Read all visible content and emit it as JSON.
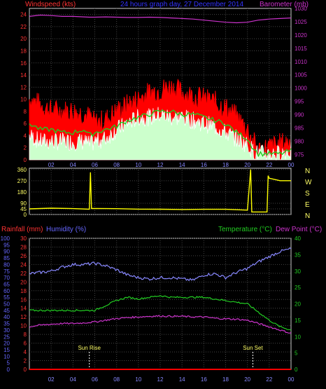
{
  "header": {
    "left_title": "Windspeed (kts)",
    "center_title": "24 hours graph day, 27 December 2014",
    "right_title": "Barometer (mb)"
  },
  "bottom_header": {
    "rainfall": "Rainfall (mm)",
    "humidity": "Humidity (%)",
    "temperature": "Temperature (°C)",
    "dewpoint": "Dew Point (°C)"
  },
  "colors": {
    "wind_gust": "#ff0000",
    "wind_avg": "#ffffff",
    "wind_avg_area": "#ccffcc",
    "wind_smooth": "#22cc22",
    "barometer": "#cc33cc",
    "direction": "#ffff00",
    "humidity": "#8888ff",
    "temperature": "#22cc22",
    "dewpoint": "#cc33cc",
    "rainfall": "#ff0000",
    "axis_left": "#ff3333",
    "axis_right": "#cc33cc",
    "axis_blue": "#6666ff",
    "axis_green": "#22cc22",
    "axis_yellow": "#ffff66",
    "grid": "#444444",
    "frame": "#cccccc"
  },
  "chart_data": [
    {
      "type": "line",
      "name": "wind-barometer",
      "x_ticks": [
        "02",
        "04",
        "06",
        "08",
        "10",
        "12",
        "14",
        "16",
        "18",
        "20",
        "22",
        "00"
      ],
      "y_left": {
        "label": "Windspeed (kts)",
        "ticks": [
          0,
          2,
          4,
          6,
          8,
          10,
          12,
          14,
          16,
          18,
          20,
          22,
          24
        ],
        "range": [
          0,
          25
        ]
      },
      "y_right": {
        "label": "Barometer (mb)",
        "ticks": [
          975,
          980,
          985,
          990,
          995,
          1000,
          1005,
          1010,
          1015,
          1020,
          1025,
          1030
        ],
        "range": [
          973,
          1030
        ]
      },
      "x_hours": [
        0,
        1,
        2,
        3,
        4,
        5,
        5.5,
        6,
        7,
        8,
        9,
        10,
        11,
        12,
        13,
        14,
        15,
        16,
        17,
        18,
        19,
        20,
        20.5,
        21,
        22,
        23,
        24
      ],
      "series": [
        {
          "name": "Wind Gust",
          "values": [
            10,
            9,
            8,
            8,
            8,
            7.5,
            7,
            6,
            6.5,
            8,
            9,
            10,
            11,
            11.5,
            12,
            11,
            10.5,
            10,
            9.5,
            8.5,
            7,
            5,
            3,
            1.5,
            2,
            2.5,
            3
          ]
        },
        {
          "name": "Wind Average",
          "values": [
            4,
            3,
            3,
            3,
            3,
            3,
            2.5,
            3,
            3.5,
            5,
            6,
            7,
            7,
            7.5,
            7,
            7,
            6.5,
            6,
            5.5,
            4.5,
            3.5,
            2.5,
            1.5,
            1,
            1,
            1,
            1.5
          ]
        },
        {
          "name": "Wind Smooth",
          "values": [
            6,
            5,
            5,
            4.5,
            4.5,
            5,
            4,
            4.5,
            5,
            5.5,
            6.5,
            7,
            7.5,
            8,
            8,
            7.5,
            7.5,
            7,
            6.5,
            6,
            4.5,
            3.5,
            2,
            1,
            1,
            1,
            1.5
          ]
        },
        {
          "name": "Barometer",
          "values": [
            1027,
            1027.5,
            1027.3,
            1027,
            1027,
            1026.8,
            1026.7,
            1026.7,
            1026.8,
            1026.7,
            1026.6,
            1026.6,
            1026.7,
            1026.6,
            1026.4,
            1026.2,
            1026,
            1025.6,
            1025.2,
            1024.8,
            1024.6,
            1024.8,
            1025.2,
            1025.6,
            1026,
            1026.2,
            1026.4
          ]
        }
      ]
    },
    {
      "type": "line",
      "name": "wind-direction",
      "y_left": {
        "ticks": [
          0,
          45,
          90,
          180,
          270,
          360
        ],
        "range": [
          0,
          370
        ]
      },
      "y_right": {
        "labels": [
          "N",
          "W",
          "S",
          "E",
          "N"
        ]
      },
      "x_hours": [
        0,
        2,
        4,
        5.5,
        5.6,
        5.7,
        6,
        8,
        10,
        12,
        14,
        16,
        18,
        20,
        20.3,
        20.4,
        21.8,
        21.9,
        22,
        23,
        24
      ],
      "series": [
        {
          "name": "Wind Direction",
          "values": [
            45,
            50,
            45,
            45,
            340,
            45,
            50,
            45,
            45,
            45,
            42,
            40,
            40,
            35,
            360,
            20,
            20,
            310,
            290,
            270,
            270
          ]
        }
      ]
    },
    {
      "type": "line",
      "name": "temp-humidity",
      "x_ticks": [
        "02",
        "04",
        "06",
        "08",
        "10",
        "12",
        "14",
        "16",
        "18",
        "20",
        "22",
        "00"
      ],
      "y_left_blue": {
        "label": "Humidity (%)",
        "ticks": [
          0,
          5,
          10,
          15,
          20,
          25,
          30,
          35,
          40,
          45,
          50,
          55,
          60,
          65,
          70,
          75,
          80,
          85,
          90,
          95,
          100
        ],
        "range": [
          0,
          100
        ]
      },
      "y_left_red": {
        "label": "Rainfall (mm)",
        "ticks": [
          0,
          2,
          4,
          6,
          8,
          10,
          12,
          14,
          16,
          18,
          20,
          22,
          24,
          26,
          28,
          30
        ],
        "range": [
          0,
          30
        ]
      },
      "y_right_green": {
        "label": "Temperature (°C)",
        "ticks": [
          0,
          5,
          10,
          15,
          20,
          25,
          30,
          35,
          40
        ],
        "range": [
          0,
          40
        ]
      },
      "annotations": [
        {
          "label": "Sun Rise",
          "hour": 5.5
        },
        {
          "label": "Sun Set",
          "hour": 20.5
        }
      ],
      "x_hours": [
        0,
        1,
        2,
        3,
        4,
        5,
        6,
        7,
        8,
        9,
        10,
        11,
        12,
        13,
        14,
        15,
        16,
        17,
        18,
        19,
        20,
        21,
        22,
        23,
        24
      ],
      "series": [
        {
          "name": "Humidity",
          "axis": "blue",
          "values": [
            73,
            74,
            75,
            78,
            80,
            80,
            81,
            79,
            76,
            72,
            70,
            69,
            70,
            70,
            69,
            68,
            72,
            73,
            70,
            74,
            77,
            82,
            86,
            90,
            92
          ]
        },
        {
          "name": "Temperature",
          "axis": "green",
          "values": [
            18,
            18,
            18,
            18,
            18,
            18,
            18,
            19.5,
            21,
            22,
            21.5,
            22,
            22.5,
            22,
            22,
            22,
            22,
            21.5,
            21,
            20.5,
            20,
            17.5,
            15,
            13,
            12
          ]
        },
        {
          "name": "Dew Point",
          "axis": "green",
          "values": [
            13,
            13.5,
            13.8,
            14,
            14,
            14.2,
            14.5,
            15,
            15.5,
            15.8,
            16,
            16.2,
            16.3,
            16.2,
            16.2,
            16,
            16,
            15.6,
            15.4,
            15.3,
            15,
            14,
            13,
            12,
            11
          ]
        },
        {
          "name": "Rainfall",
          "axis": "red",
          "values": [
            0,
            0,
            0,
            0,
            0,
            0,
            0,
            0,
            0,
            0,
            0,
            0,
            0,
            0,
            0,
            0,
            0,
            0,
            0,
            0,
            0,
            0,
            0,
            0,
            0
          ]
        }
      ]
    }
  ]
}
